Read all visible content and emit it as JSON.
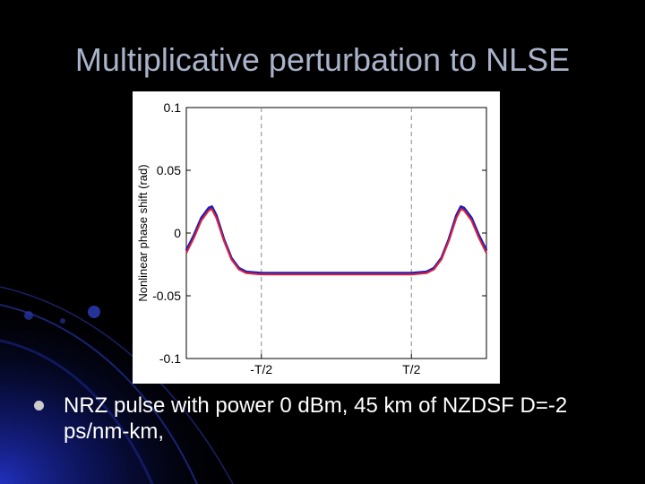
{
  "slide": {
    "title": "Multiplicative perturbation to NLSE",
    "bullet": "NRZ pulse with power 0 dBm, 45 km of NZDSF D=-2 ps/nm-km,"
  },
  "colors": {
    "background": "#000000",
    "title": "#a9b3c9",
    "series_blue": "#1f1fb4",
    "series_red": "#e0203a"
  },
  "chart_data": {
    "type": "line",
    "title": "",
    "xlabel": "",
    "ylabel": "Nonlinear phase shift (rad)",
    "ylim": [
      -0.1,
      0.1
    ],
    "xlim": [
      -1,
      1
    ],
    "yticks": [
      0.1,
      0.05,
      0,
      -0.05,
      -0.1
    ],
    "ytick_labels": [
      "0.1",
      "0.05",
      "0",
      "-0.05",
      "-0.1"
    ],
    "xticks": [
      -0.5,
      0.5
    ],
    "xtick_labels": [
      "-T/2",
      "T/2"
    ],
    "grid": "dashed vertical lines at -T/2 and T/2",
    "legend": "none",
    "series": [
      {
        "color": "#1f1fb4",
        "x": [
          -1.0,
          -0.95,
          -0.9,
          -0.85,
          -0.83,
          -0.8,
          -0.75,
          -0.7,
          -0.65,
          -0.6,
          -0.5,
          -0.3,
          0.0,
          0.3,
          0.5,
          0.6,
          0.65,
          0.7,
          0.75,
          0.8,
          0.83,
          0.85,
          0.9,
          0.95,
          1.0
        ],
        "y": [
          -0.014,
          -0.002,
          0.012,
          0.02,
          0.021,
          0.014,
          -0.005,
          -0.02,
          -0.028,
          -0.031,
          -0.032,
          -0.032,
          -0.032,
          -0.032,
          -0.032,
          -0.031,
          -0.028,
          -0.02,
          -0.005,
          0.014,
          0.021,
          0.02,
          0.012,
          -0.002,
          -0.014
        ]
      },
      {
        "color": "#e0203a",
        "x": [
          -1.0,
          -0.95,
          -0.9,
          -0.85,
          -0.83,
          -0.8,
          -0.75,
          -0.7,
          -0.65,
          -0.6,
          -0.5,
          -0.3,
          0.0,
          0.3,
          0.5,
          0.6,
          0.65,
          0.7,
          0.75,
          0.8,
          0.83,
          0.85,
          0.9,
          0.95,
          1.0
        ],
        "y": [
          -0.016,
          -0.004,
          0.01,
          0.018,
          0.019,
          0.012,
          -0.006,
          -0.021,
          -0.029,
          -0.032,
          -0.033,
          -0.033,
          -0.033,
          -0.033,
          -0.033,
          -0.032,
          -0.029,
          -0.021,
          -0.006,
          0.012,
          0.019,
          0.018,
          0.01,
          -0.004,
          -0.016
        ]
      }
    ]
  }
}
